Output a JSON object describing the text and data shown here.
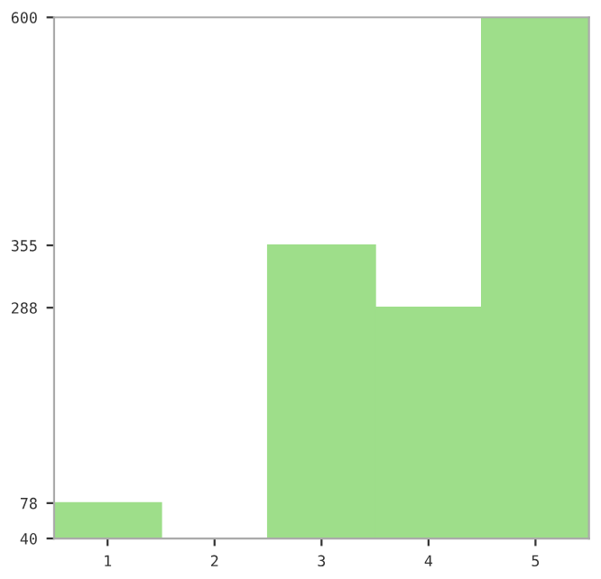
{
  "chart_data": {
    "type": "bar",
    "categories": [
      "1",
      "2",
      "3",
      "4",
      "5"
    ],
    "values": [
      78,
      40,
      355,
      288,
      600
    ],
    "color": "#9ede8a",
    "ylim": [
      40,
      600
    ],
    "yticks": [
      40,
      78,
      288,
      355,
      600
    ],
    "grid": false
  }
}
